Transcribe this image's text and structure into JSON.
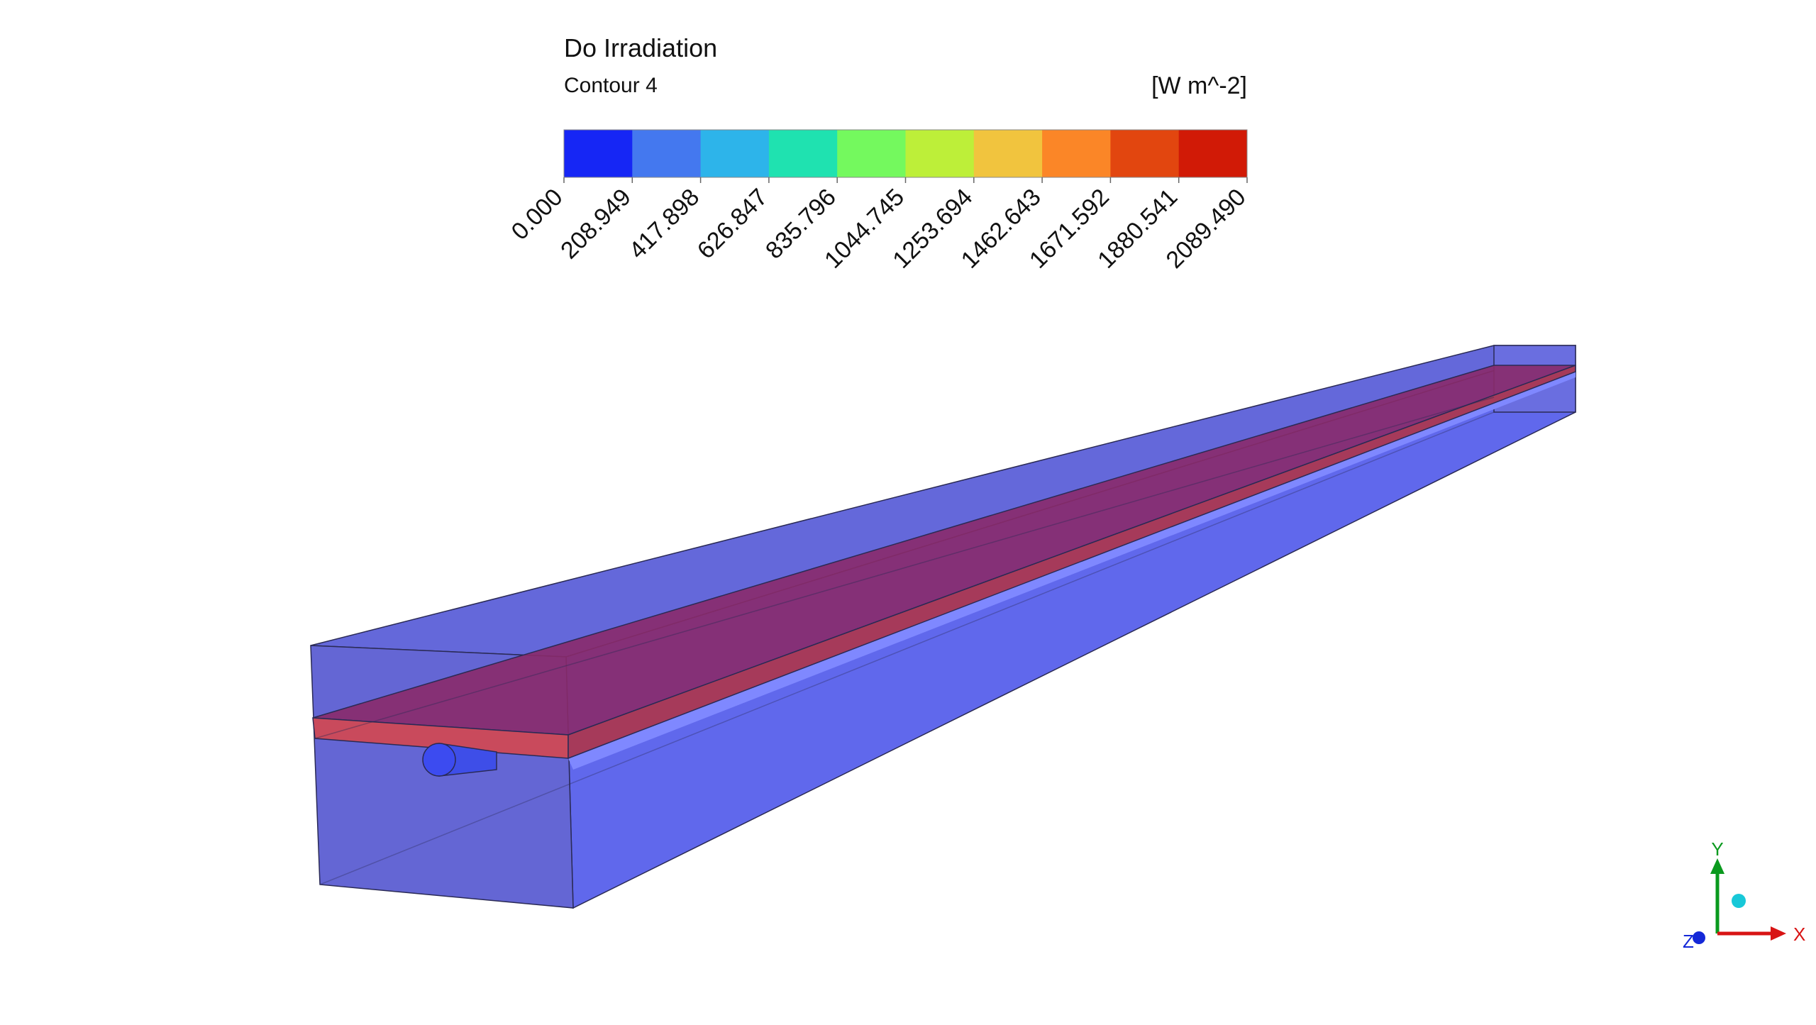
{
  "legend": {
    "title": "Do Irradiation",
    "subtitle": "Contour 4",
    "unit": "[W m^-2]",
    "colors": [
      "#1626f5",
      "#4478ef",
      "#2db4ea",
      "#1fe2b0",
      "#74f95e",
      "#bdef39",
      "#f1c43e",
      "#fb8627",
      "#e2460f",
      "#d11a06"
    ],
    "ticks": [
      "0.000",
      "208.949",
      "417.898",
      "626.847",
      "835.796",
      "1044.745",
      "1253.694",
      "1462.643",
      "1671.592",
      "1880.541",
      "2089.490"
    ]
  },
  "axes_triad": {
    "x": "X",
    "y": "Y",
    "z": "Z"
  }
}
